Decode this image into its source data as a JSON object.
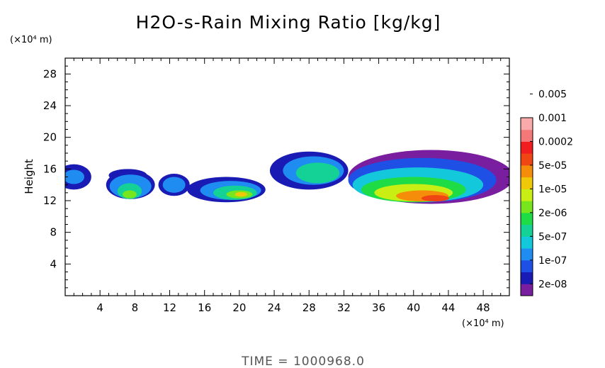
{
  "chart_data": {
    "type": "heatmap",
    "title": "H2O-s-Rain Mixing Ratio [kg/kg]",
    "ylabel": "Height",
    "x_unit": "(×10⁴ m)",
    "y_unit": "(×10⁴ m)",
    "time_label": "TIME = 1000968.0",
    "xlim": [
      0,
      51
    ],
    "ylim": [
      0,
      30
    ],
    "x_ticks": [
      {
        "value": 4,
        "label": "4"
      },
      {
        "value": 8,
        "label": "8"
      },
      {
        "value": 12,
        "label": "12"
      },
      {
        "value": 16,
        "label": "16"
      },
      {
        "value": 20,
        "label": "20"
      },
      {
        "value": 24,
        "label": "24"
      },
      {
        "value": 28,
        "label": "28"
      },
      {
        "value": 32,
        "label": "32"
      },
      {
        "value": 36,
        "label": "36"
      },
      {
        "value": 40,
        "label": "40"
      },
      {
        "value": 44,
        "label": "44"
      },
      {
        "value": 48,
        "label": "48"
      }
    ],
    "y_ticks": [
      {
        "value": 4,
        "label": "4"
      },
      {
        "value": 8,
        "label": "8"
      },
      {
        "value": 12,
        "label": "12"
      },
      {
        "value": 16,
        "label": "16"
      },
      {
        "value": 20,
        "label": "20"
      },
      {
        "value": 24,
        "label": "24"
      },
      {
        "value": 28,
        "label": "28"
      }
    ],
    "colorbar": {
      "colors": [
        "#7a1ea0",
        "#1a1ab4",
        "#1e50e6",
        "#1e8cf0",
        "#14c8dc",
        "#14d296",
        "#1edc46",
        "#78e61e",
        "#c8ee14",
        "#f0c80a",
        "#f58c0a",
        "#f04614",
        "#f01e1e",
        "#f57878",
        "#faaaaa"
      ],
      "labels": [
        "2e-08",
        "1e-07",
        "5e-07",
        "2e-06",
        "1e-05",
        "5e-05",
        "0.0002",
        "0.001",
        "0.005"
      ]
    },
    "field_blobs": [
      {
        "x": 1.0,
        "y": 15.0,
        "rx": 2.0,
        "ry": 1.6,
        "level": 1
      },
      {
        "x": 1.0,
        "y": 15.0,
        "rx": 1.2,
        "ry": 0.9,
        "level": 3
      },
      {
        "x": 7.5,
        "y": 14.0,
        "rx": 2.8,
        "ry": 1.8,
        "level": 1
      },
      {
        "x": 7.2,
        "y": 15.2,
        "rx": 2.2,
        "ry": 0.8,
        "level": 1
      },
      {
        "x": 7.5,
        "y": 13.8,
        "rx": 2.4,
        "ry": 1.5,
        "level": 3
      },
      {
        "x": 7.4,
        "y": 13.2,
        "rx": 1.4,
        "ry": 1.0,
        "level": 5
      },
      {
        "x": 7.4,
        "y": 12.8,
        "rx": 0.8,
        "ry": 0.5,
        "level": 7
      },
      {
        "x": 12.5,
        "y": 14.0,
        "rx": 1.8,
        "ry": 1.4,
        "level": 1
      },
      {
        "x": 12.5,
        "y": 14.0,
        "rx": 1.3,
        "ry": 1.0,
        "level": 3
      },
      {
        "x": 18.5,
        "y": 13.4,
        "rx": 4.5,
        "ry": 1.6,
        "level": 1
      },
      {
        "x": 19.0,
        "y": 13.3,
        "rx": 3.5,
        "ry": 1.2,
        "level": 3
      },
      {
        "x": 19.5,
        "y": 13.0,
        "rx": 2.5,
        "ry": 0.9,
        "level": 5
      },
      {
        "x": 20.0,
        "y": 12.8,
        "rx": 1.5,
        "ry": 0.5,
        "level": 7
      },
      {
        "x": 20.2,
        "y": 12.8,
        "rx": 0.7,
        "ry": 0.3,
        "level": 9
      },
      {
        "x": 28.0,
        "y": 15.8,
        "rx": 4.5,
        "ry": 2.4,
        "level": 1
      },
      {
        "x": 28.5,
        "y": 15.8,
        "rx": 3.5,
        "ry": 1.8,
        "level": 3
      },
      {
        "x": 29.0,
        "y": 15.5,
        "rx": 2.5,
        "ry": 1.3,
        "level": 5
      },
      {
        "x": 42.0,
        "y": 15.0,
        "rx": 9.5,
        "ry": 3.4,
        "level": 0
      },
      {
        "x": 41.0,
        "y": 14.6,
        "rx": 8.5,
        "ry": 2.8,
        "level": 2
      },
      {
        "x": 40.5,
        "y": 14.0,
        "rx": 7.5,
        "ry": 2.2,
        "level": 4
      },
      {
        "x": 40.0,
        "y": 13.4,
        "rx": 6.0,
        "ry": 1.6,
        "level": 6
      },
      {
        "x": 40.0,
        "y": 13.0,
        "rx": 4.5,
        "ry": 1.1,
        "level": 8
      },
      {
        "x": 41.0,
        "y": 12.6,
        "rx": 3.0,
        "ry": 0.7,
        "level": 10
      },
      {
        "x": 42.5,
        "y": 12.3,
        "rx": 1.6,
        "ry": 0.4,
        "level": 11
      }
    ]
  }
}
